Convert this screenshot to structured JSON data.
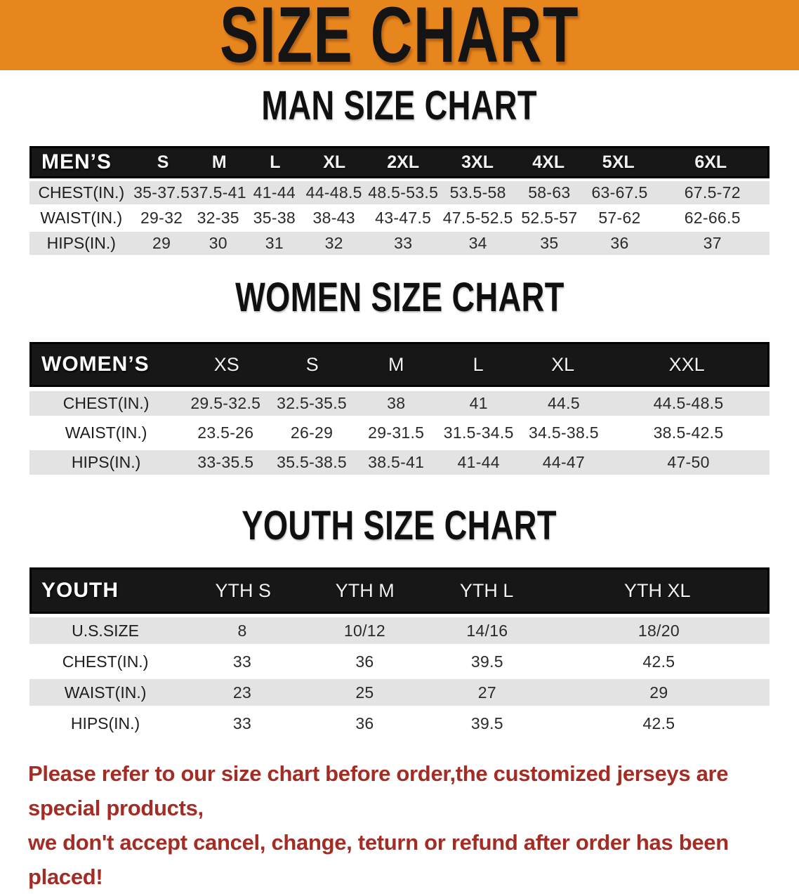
{
  "banner": {
    "title": "SIZE CHART",
    "bg_color": "#E8861E"
  },
  "colors": {
    "header_bar": "#171717",
    "shaded_row": "#E3E3E3",
    "disclaimer_text": "#A32C24"
  },
  "sections": [
    {
      "id": "men",
      "heading": "MAN SIZE CHART",
      "table": {
        "header": [
          "MEN’S",
          "S",
          "M",
          "L",
          "XL",
          "2XL",
          "3XL",
          "4XL",
          "5XL",
          "6XL"
        ],
        "rows": [
          {
            "label": "CHEST(IN.)",
            "values": [
              "35-37.5",
              "37.5-41",
              "41-44",
              "44-48.5",
              "48.5-53.5",
              "53.5-58",
              "58-63",
              "63-67.5",
              "67.5-72"
            ]
          },
          {
            "label": "WAIST(IN.)",
            "values": [
              "29-32",
              "32-35",
              "35-38",
              "38-43",
              "43-47.5",
              "47.5-52.5",
              "52.5-57",
              "57-62",
              "62-66.5"
            ]
          },
          {
            "label": "HIPS(IN.)",
            "values": [
              "29",
              "30",
              "31",
              "32",
              "33",
              "34",
              "35",
              "36",
              "37"
            ]
          }
        ]
      }
    },
    {
      "id": "women",
      "heading": "WOMEN SIZE CHART",
      "table": {
        "header": [
          "WOMEN’S",
          "XS",
          "S",
          "M",
          "L",
          "XL",
          "XXL"
        ],
        "rows": [
          {
            "label": "CHEST(IN.)",
            "values": [
              "29.5-32.5",
              "32.5-35.5",
              "38",
              "41",
              "44.5",
              "44.5-48.5"
            ]
          },
          {
            "label": "WAIST(IN.)",
            "values": [
              "23.5-26",
              "26-29",
              "29-31.5",
              "31.5-34.5",
              "34.5-38.5",
              "38.5-42.5"
            ]
          },
          {
            "label": "HIPS(IN.)",
            "values": [
              "33-35.5",
              "35.5-38.5",
              "38.5-41",
              "41-44",
              "44-47",
              "47-50"
            ]
          }
        ]
      }
    },
    {
      "id": "youth",
      "heading": "YOUTH SIZE CHART",
      "table": {
        "header": [
          "YOUTH",
          "YTH S",
          "YTH M",
          "YTH L",
          "YTH XL"
        ],
        "rows": [
          {
            "label": "U.S.SIZE",
            "values": [
              "8",
              "10/12",
              "14/16",
              "18/20"
            ]
          },
          {
            "label": "CHEST(IN.)",
            "values": [
              "33",
              "36",
              "39.5",
              "42.5"
            ]
          },
          {
            "label": "WAIST(IN.)",
            "values": [
              "23",
              "25",
              "27",
              "29"
            ]
          },
          {
            "label": "HIPS(IN.)",
            "values": [
              "33",
              "36",
              "39.5",
              "42.5"
            ]
          }
        ]
      }
    }
  ],
  "footer": {
    "line1": "Please refer to our size chart before order,the customized jerseys are special products,",
    "line2": "we don't accept cancel, change, teturn or refund after order has been placed!"
  }
}
